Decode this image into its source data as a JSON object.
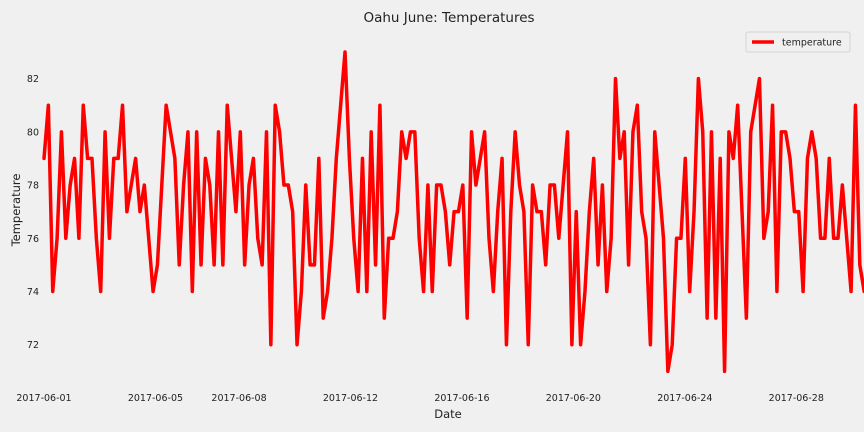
{
  "chart_data": {
    "type": "line",
    "title": "Oahu June:  Temperatures",
    "xlabel": "Date",
    "ylabel": "Temperature",
    "xlim": [
      "2017-06-01",
      "2017-06-30"
    ],
    "ylim": [
      70.6,
      83.6
    ],
    "grid": false,
    "legend_position": "top-right",
    "x_ticks": [
      "2017-06-01",
      "2017-06-05",
      "2017-06-08",
      "2017-06-12",
      "2017-06-16",
      "2017-06-20",
      "2017-06-24",
      "2017-06-28"
    ],
    "y_ticks": [
      72,
      74,
      76,
      78,
      80,
      82
    ],
    "series": [
      {
        "name": "temperature",
        "color": "#ff0000",
        "values": [
          79,
          81,
          74,
          76,
          80,
          76,
          78,
          79,
          76,
          81,
          79,
          79,
          76,
          74,
          80,
          76,
          79,
          79,
          81,
          77,
          78,
          79,
          77,
          78,
          76,
          74,
          75,
          78,
          81,
          80,
          79,
          75,
          78,
          80,
          74,
          80,
          75,
          79,
          78,
          75,
          80,
          75,
          81,
          79,
          77,
          80,
          75,
          78,
          79,
          76,
          75,
          80,
          72,
          81,
          80,
          78,
          78,
          77,
          72,
          74,
          78,
          75,
          75,
          79,
          73,
          74,
          76,
          79,
          81,
          83,
          79,
          76,
          74,
          79,
          74,
          80,
          75,
          81,
          73,
          76,
          76,
          77,
          80,
          79,
          80,
          80,
          76,
          74,
          78,
          74,
          78,
          78,
          77,
          75,
          77,
          77,
          78,
          73,
          80,
          78,
          79,
          80,
          76,
          74,
          77,
          79,
          72,
          77,
          80,
          78,
          77,
          72,
          78,
          77,
          77,
          75,
          78,
          78,
          76,
          78,
          80,
          72,
          77,
          72,
          74,
          77,
          79,
          75,
          78,
          74,
          76,
          82,
          79,
          80,
          75,
          80,
          81,
          77,
          76,
          72,
          80,
          78,
          76,
          71,
          72,
          76,
          76,
          79,
          74,
          77,
          82,
          80,
          73,
          80,
          73,
          79,
          71,
          80,
          79,
          81,
          77,
          73,
          80,
          81,
          82,
          76,
          77,
          81,
          74,
          80,
          80,
          79,
          77,
          77,
          74,
          79,
          80,
          79,
          76,
          76,
          79,
          76,
          76,
          78,
          76,
          74,
          81,
          75,
          74,
          75,
          75
        ]
      }
    ]
  }
}
